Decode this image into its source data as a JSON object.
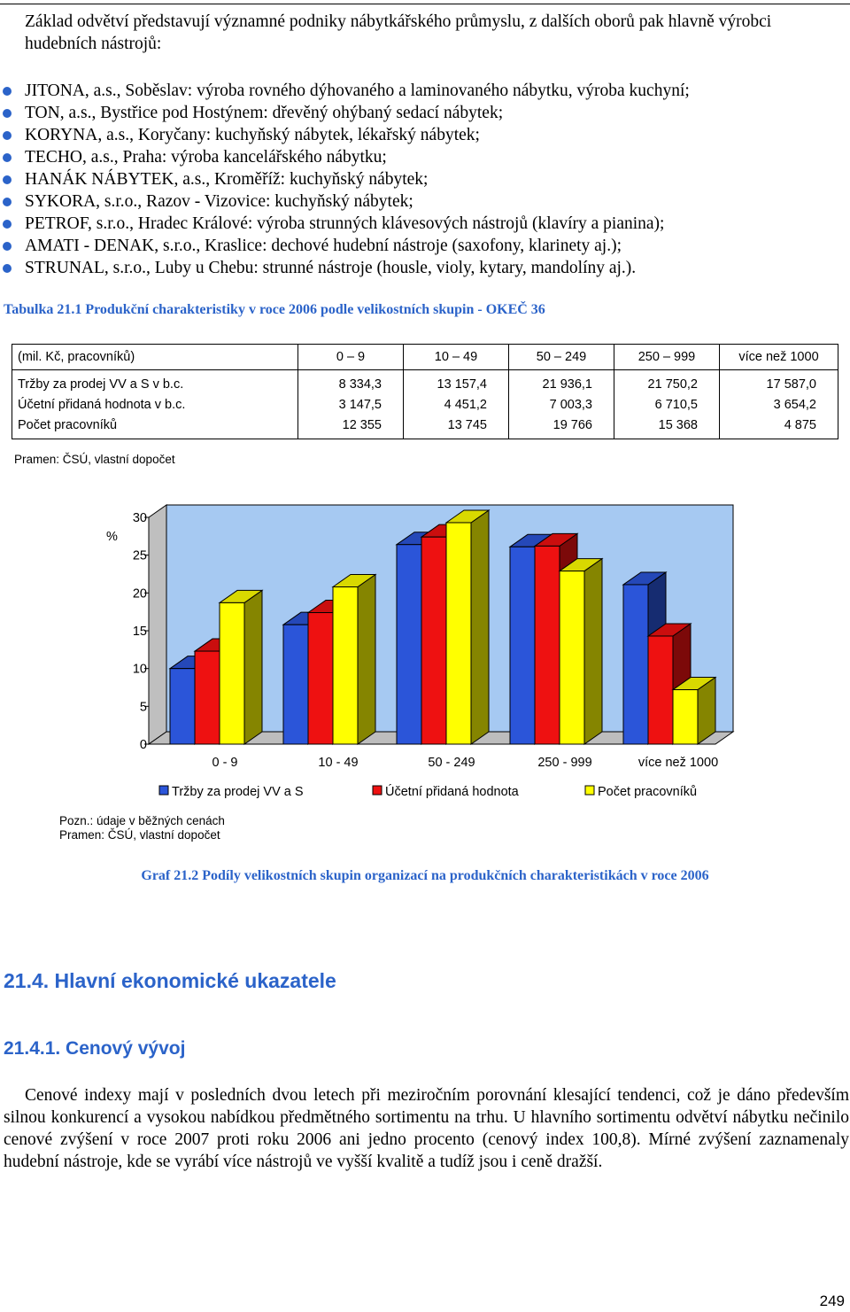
{
  "intro": "Základ odvětví představují významné podniky nábytkářského průmyslu, z dalších oborů pak hlavně výrobci hudebních nástrojů:",
  "bullets": [
    "JITONA, a.s., Soběslav: výroba rovného dýhovaného a laminovaného nábytku, výroba kuchyní;",
    "TON, a.s., Bystřice pod Hostýnem: dřevěný ohýbaný sedací nábytek;",
    "KORYNA, a.s., Koryčany: kuchyňský nábytek, lékařský nábytek;",
    "TECHO, a.s., Praha: výroba kancelářského nábytku;",
    "HANÁK NÁBYTEK, a.s., Kroměříž: kuchyňský nábytek;",
    "SYKORA, s.r.o., Razov - Vizovice: kuchyňský nábytek;",
    "PETROF, s.r.o., Hradec Králové: výroba strunných klávesových nástrojů (klavíry a pianina);",
    "AMATI - DENAK, s.r.o., Kraslice: dechové hudební nástroje (saxofony, klarinety aj.);",
    "STRUNAL, s.r.o., Luby u Chebu: strunné nástroje (housle, violy, kytary, mandolíny aj.)."
  ],
  "table_caption": "Tabulka 21.1 Produkční charakteristiky v roce 2006 podle velikostních skupin - OKEČ 36",
  "table": {
    "header": [
      "(mil. Kč, pracovníků)",
      "0 – 9",
      "10 – 49",
      "50 – 249",
      "250 – 999",
      "více než 1000"
    ],
    "rows": [
      [
        "Tržby  za prodej VV a S v b.c.",
        "8 334,3",
        "13 157,4",
        "21 936,1",
        "21 750,2",
        "17 587,0"
      ],
      [
        "Účetní přidaná hodnota v b.c.",
        "3 147,5",
        "4 451,2",
        "7 003,3",
        "6 710,5",
        "3 654,2"
      ],
      [
        "Počet pracovníků",
        "12 355",
        "13 745",
        "19 766",
        "15 368",
        "4 875"
      ]
    ]
  },
  "source1": "Pramen: ČSÚ, vlastní dopočet",
  "chart_data": {
    "type": "bar",
    "style": "3d-clustered",
    "ylabel": "%",
    "ylim": [
      0,
      30
    ],
    "yticks": [
      0,
      5,
      10,
      15,
      20,
      25,
      30
    ],
    "grid": false,
    "legend_position": "bottom",
    "categories": [
      "0 - 9",
      "10 - 49",
      "50 - 249",
      "250 - 999",
      "více než 1000"
    ],
    "series": [
      {
        "name": "Tržby za prodej VV a S",
        "color": "#2b55d9",
        "values": [
          10.0,
          15.8,
          26.4,
          26.1,
          21.1
        ]
      },
      {
        "name": "Účetní přidaná hodnota",
        "color": "#ee1111",
        "values": [
          12.3,
          17.4,
          27.4,
          26.2,
          14.3
        ]
      },
      {
        "name": "Počet pracovníků",
        "color": "#ffff00",
        "values": [
          18.7,
          20.8,
          29.3,
          22.9,
          7.2
        ]
      }
    ]
  },
  "notes": [
    "Pozn.: údaje v běžných cenách",
    "Pramen: ČSÚ, vlastní dopočet"
  ],
  "graph_caption": "Graf 21.2 Podíly velikostních skupin organizací na produkčních charakteristikách v roce 2006",
  "section1": "21.4. Hlavní ekonomické ukazatele",
  "section2": "21.4.1. Cenový vývoj",
  "paragraph": "Cenové indexy mají v posledních dvou letech při meziročním porovnání klesající tendenci, což je dáno především silnou konkurencí a vysokou nabídkou předmětného sortimentu na trhu. U hlavního sortimentu odvětví nábytku nečinilo cenové zvýšení v roce 2007 proti roku 2006 ani jedno procento (cenový index 100,8). Mírné zvýšení zaznamenaly hudební nástroje, kde se vyrábí více nástrojů ve vyšší kvalitě a tudíž jsou i ceně dražší.",
  "page_number": "249"
}
